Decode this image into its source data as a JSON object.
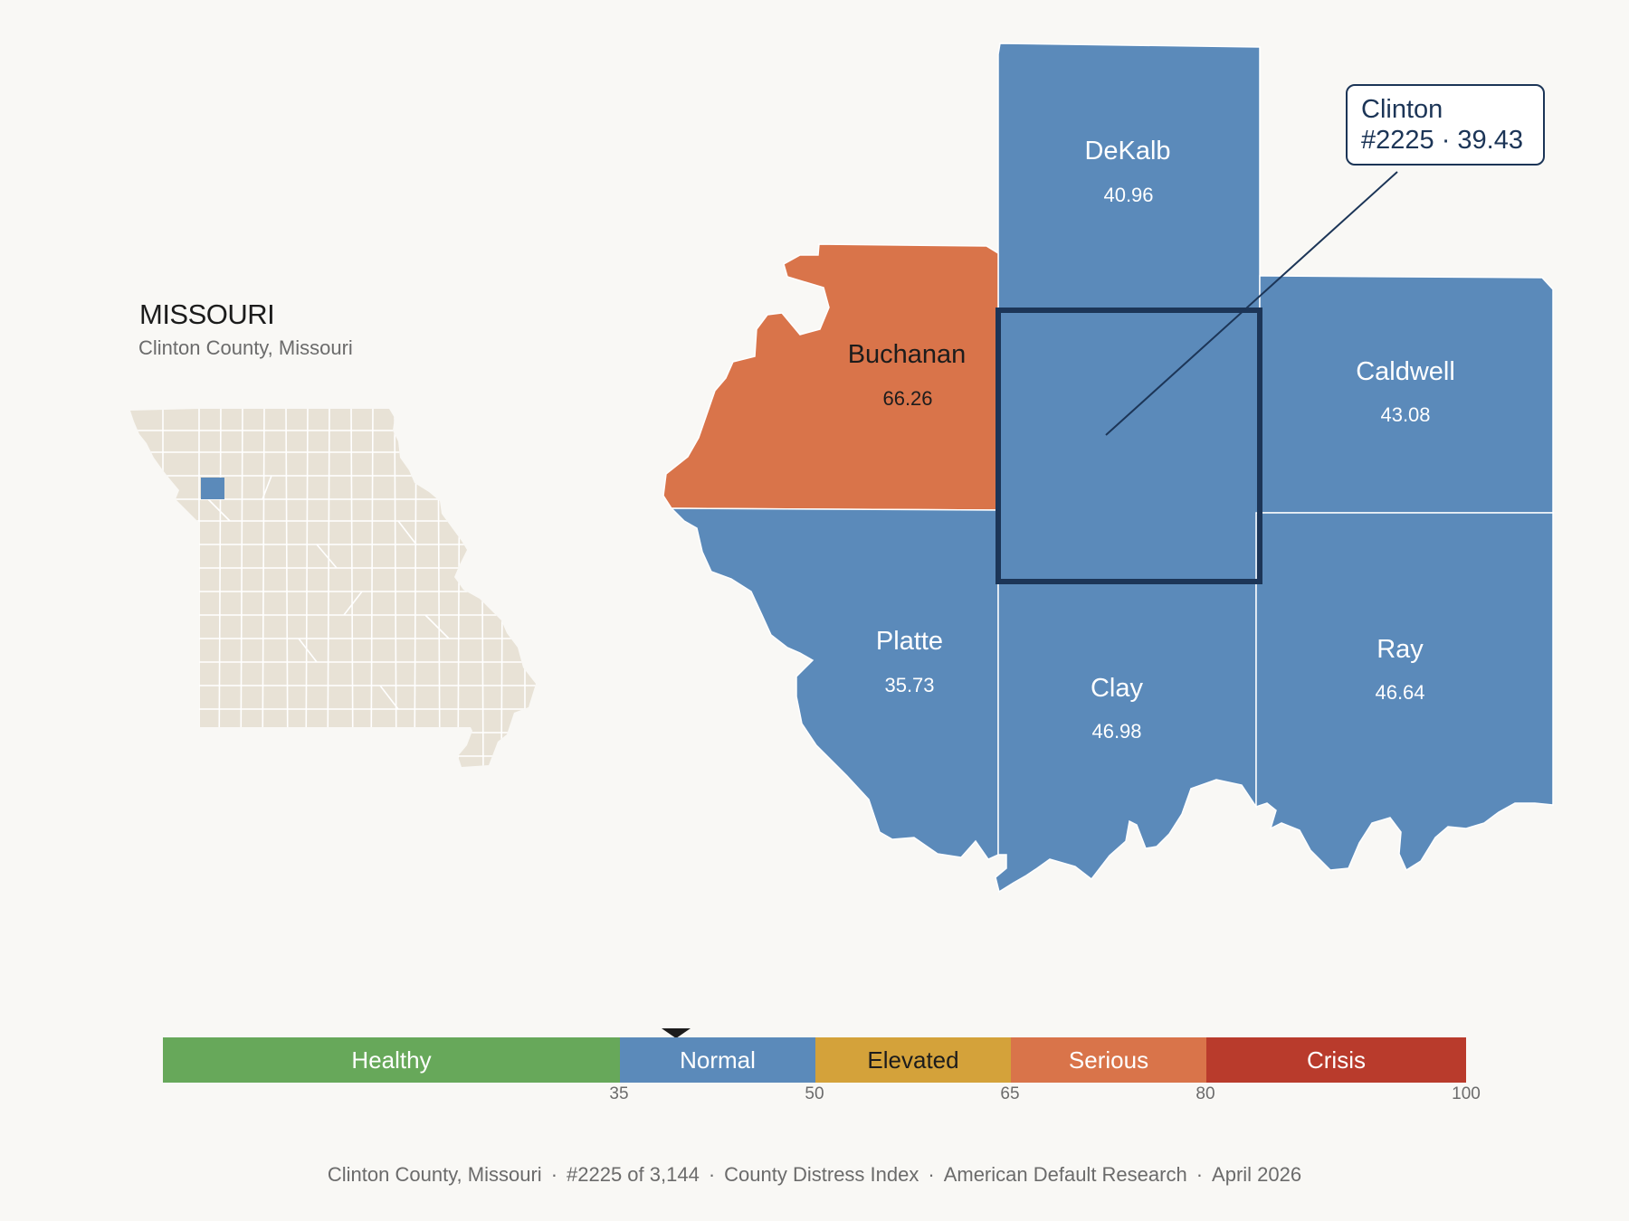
{
  "header": {
    "state_title": "MISSOURI",
    "subtitle": "Clinton County, Missouri"
  },
  "colors": {
    "healthy": "#67a85a",
    "normal": "#5b8aba",
    "elevated": "#d4a23a",
    "serious": "#d9744a",
    "crisis": "#b93b2c",
    "inset_fill": "#e8e2d6",
    "highlight_border": "#1c3557"
  },
  "counties": [
    {
      "name": "DeKalb",
      "value": "40.96",
      "category": "normal"
    },
    {
      "name": "Buchanan",
      "value": "66.26",
      "category": "serious"
    },
    {
      "name": "Caldwell",
      "value": "43.08",
      "category": "normal"
    },
    {
      "name": "Platte",
      "value": "35.73",
      "category": "normal"
    },
    {
      "name": "Clay",
      "value": "46.98",
      "category": "normal"
    },
    {
      "name": "Ray",
      "value": "46.64",
      "category": "normal"
    },
    {
      "name": "Clinton",
      "value": "39.43",
      "category": "normal",
      "highlighted": true
    }
  ],
  "callout": {
    "name": "Clinton",
    "rank_value": "#2225 · 39.43"
  },
  "legend": {
    "segments": [
      {
        "label": "Healthy",
        "from": 0,
        "to": 35
      },
      {
        "label": "Normal",
        "from": 35,
        "to": 50
      },
      {
        "label": "Elevated",
        "from": 50,
        "to": 65
      },
      {
        "label": "Serious",
        "from": 65,
        "to": 80
      },
      {
        "label": "Crisis",
        "from": 80,
        "to": 100
      }
    ],
    "ticks": [
      "35",
      "50",
      "65",
      "80",
      "100"
    ],
    "marker_value": 39.43
  },
  "footer": {
    "county": "Clinton County, Missouri",
    "rank": "#2225 of 3,144",
    "index": "County Distress Index",
    "source": "American Default Research",
    "date": "April 2026",
    "separator": "·"
  }
}
